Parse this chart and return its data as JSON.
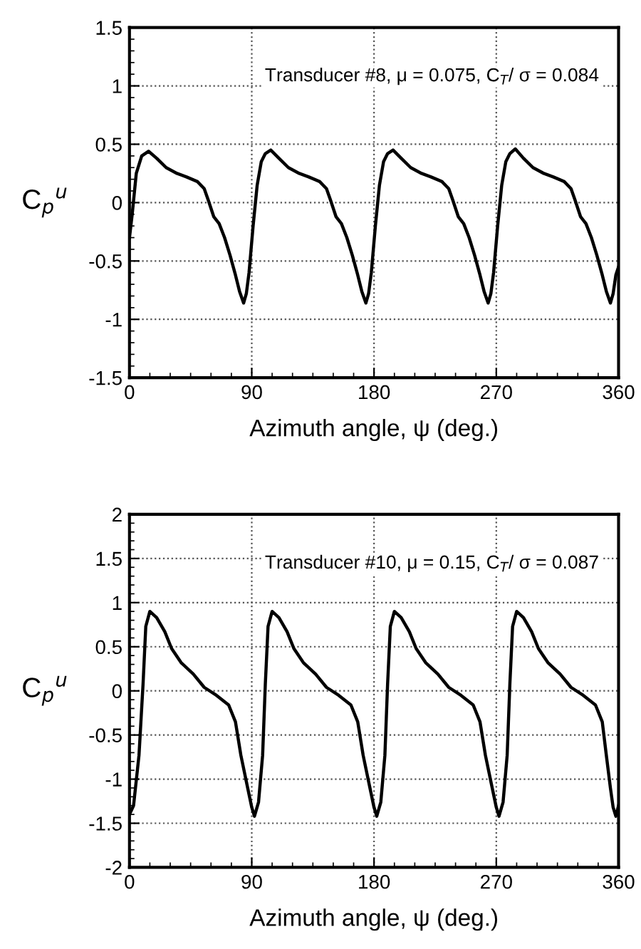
{
  "chart_data": [
    {
      "type": "line",
      "xlabel": "Azimuth angle, ψ (deg.)",
      "ylabel": "C$_{p}$$^{u}$",
      "annotations": [
        "Transducer #8, μ = 0.075, C$_{T}$/ σ = 0.084"
      ],
      "xlim": [
        0,
        360
      ],
      "xticks": [
        0,
        90,
        180,
        270,
        360
      ],
      "ylim": [
        -1.5,
        1.5
      ],
      "yticks": [
        -1.5,
        -1,
        -0.5,
        0,
        0.5,
        1,
        1.5
      ],
      "grid": true,
      "line_style": "solid",
      "marker": "none",
      "series": [
        {
          "color": "#000000",
          "x": [
            0,
            2,
            5,
            9,
            14,
            20,
            27,
            35,
            42,
            50,
            55,
            58,
            62,
            66,
            70,
            74,
            78,
            81,
            84,
            86,
            88,
            91,
            94,
            97,
            100,
            104,
            110,
            117,
            125,
            132,
            140,
            145,
            148,
            152,
            156,
            160,
            164,
            168,
            171,
            174,
            176,
            178,
            181,
            184,
            187,
            190,
            194,
            200,
            207,
            215,
            222,
            230,
            235,
            238,
            242,
            246,
            250,
            254,
            258,
            261,
            264,
            266,
            268,
            271,
            274,
            277,
            280,
            284,
            290,
            297,
            305,
            312,
            320,
            325,
            328,
            332,
            336,
            340,
            344,
            348,
            351,
            354,
            356,
            358,
            360
          ],
          "values": [
            -0.3,
            -0.1,
            0.25,
            0.4,
            0.44,
            0.38,
            0.3,
            0.25,
            0.22,
            0.18,
            0.12,
            0.02,
            -0.12,
            -0.18,
            -0.3,
            -0.45,
            -0.62,
            -0.76,
            -0.86,
            -0.78,
            -0.6,
            -0.2,
            0.15,
            0.35,
            0.42,
            0.45,
            0.38,
            0.3,
            0.25,
            0.22,
            0.18,
            0.12,
            0.02,
            -0.12,
            -0.18,
            -0.3,
            -0.45,
            -0.62,
            -0.76,
            -0.86,
            -0.78,
            -0.6,
            -0.2,
            0.15,
            0.35,
            0.42,
            0.45,
            0.38,
            0.3,
            0.25,
            0.22,
            0.18,
            0.12,
            0.02,
            -0.12,
            -0.18,
            -0.3,
            -0.45,
            -0.62,
            -0.76,
            -0.86,
            -0.78,
            -0.6,
            -0.2,
            0.15,
            0.35,
            0.42,
            0.46,
            0.38,
            0.3,
            0.25,
            0.22,
            0.18,
            0.12,
            0.02,
            -0.12,
            -0.18,
            -0.3,
            -0.45,
            -0.62,
            -0.76,
            -0.86,
            -0.78,
            -0.62,
            -0.55
          ]
        }
      ]
    },
    {
      "type": "line",
      "xlabel": "Azimuth angle, ψ (deg.)",
      "ylabel": "C$_{p}$$^{u}$",
      "annotations": [
        "Transducer #10, μ = 0.15, C$_{T}$/ σ = 0.087"
      ],
      "xlim": [
        0,
        360
      ],
      "xticks": [
        0,
        90,
        180,
        270,
        360
      ],
      "ylim": [
        -2,
        2
      ],
      "yticks": [
        -2,
        -1.5,
        -1,
        -0.5,
        0,
        0.5,
        1,
        1.5,
        2
      ],
      "grid": true,
      "line_style": "solid",
      "marker": "none",
      "series": [
        {
          "color": "#000000",
          "x": [
            0,
            3,
            7,
            10,
            12,
            15,
            20,
            26,
            31,
            38,
            47,
            55,
            64,
            73,
            78,
            82,
            87,
            90,
            92,
            95,
            98,
            100,
            102,
            105,
            110,
            116,
            121,
            128,
            137,
            145,
            154,
            163,
            168,
            172,
            177,
            180,
            182,
            185,
            188,
            190,
            192,
            195,
            200,
            206,
            211,
            218,
            227,
            235,
            244,
            253,
            258,
            262,
            267,
            270,
            272,
            275,
            278,
            280,
            282,
            285,
            290,
            296,
            301,
            308,
            317,
            325,
            334,
            343,
            348,
            351,
            354,
            356,
            358,
            360
          ],
          "values": [
            -1.4,
            -1.3,
            -0.73,
            0.08,
            0.73,
            0.9,
            0.83,
            0.67,
            0.48,
            0.32,
            0.19,
            0.04,
            -0.05,
            -0.16,
            -0.35,
            -0.73,
            -1.1,
            -1.32,
            -1.42,
            -1.26,
            -0.73,
            0.08,
            0.73,
            0.9,
            0.83,
            0.67,
            0.48,
            0.32,
            0.19,
            0.04,
            -0.05,
            -0.16,
            -0.35,
            -0.73,
            -1.1,
            -1.32,
            -1.42,
            -1.26,
            -0.73,
            0.08,
            0.73,
            0.9,
            0.83,
            0.67,
            0.48,
            0.32,
            0.19,
            0.04,
            -0.05,
            -0.16,
            -0.35,
            -0.73,
            -1.1,
            -1.32,
            -1.42,
            -1.26,
            -0.73,
            0.08,
            0.73,
            0.9,
            0.83,
            0.67,
            0.48,
            0.32,
            0.19,
            0.04,
            -0.05,
            -0.16,
            -0.35,
            -0.73,
            -1.1,
            -1.32,
            -1.42,
            -1.3
          ]
        }
      ]
    }
  ]
}
